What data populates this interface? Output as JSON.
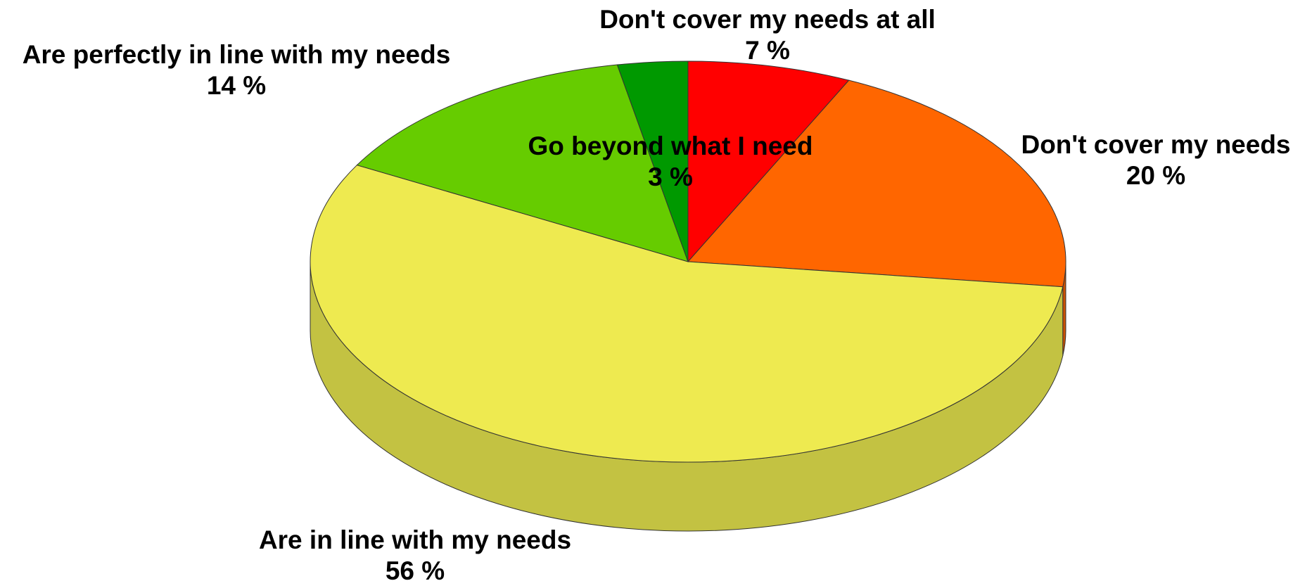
{
  "chart_data": {
    "type": "pie",
    "style": "3d",
    "title": "",
    "slices": [
      {
        "label": "Don't cover my needs at all",
        "value": 7,
        "value_text": "7 %",
        "color": "#ff0000",
        "side_color": "#cc0000"
      },
      {
        "label": "Don't cover my needs",
        "value": 20,
        "value_text": "20 %",
        "color": "#ff6600",
        "side_color": "#cc5200"
      },
      {
        "label": "Are in line with my needs",
        "value": 56,
        "value_text": "56 %",
        "color": "#eeea50",
        "side_color": "#c3c242"
      },
      {
        "label": "Are perfectly in line with my needs",
        "value": 14,
        "value_text": "14 %",
        "color": "#66cc00",
        "side_color": "#52a300"
      },
      {
        "label": "Go beyond what I need",
        "value": 3,
        "value_text": "3 %",
        "color": "#009900",
        "side_color": "#007a00"
      }
    ],
    "legend": "none",
    "data_labels": "outside"
  }
}
